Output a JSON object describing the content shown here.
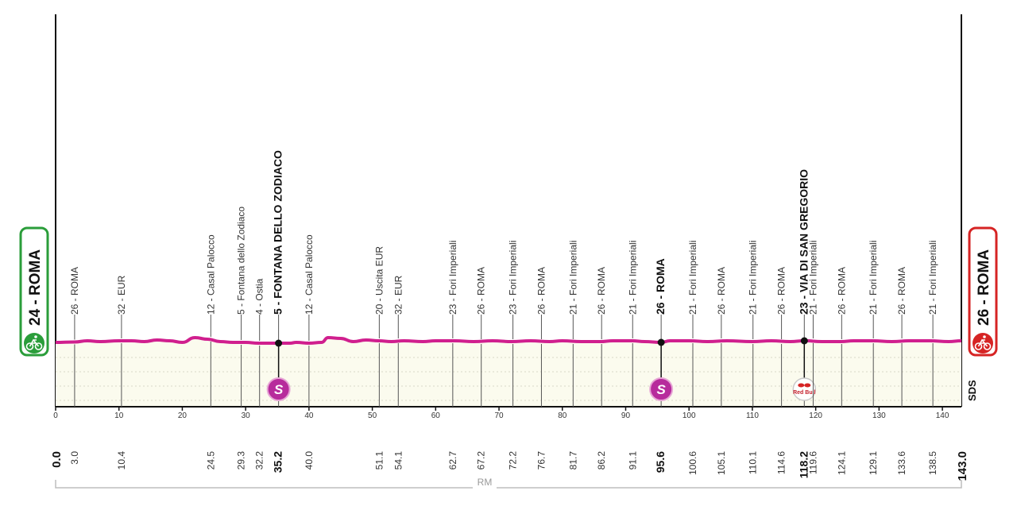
{
  "start": {
    "label": "24 - ROMA",
    "km": "0.0",
    "icon": "start-cyclist-icon"
  },
  "finish": {
    "label": "26 - ROMA",
    "km": "143.0",
    "icon": "finish-cyclist-icon"
  },
  "range_label": "RM",
  "brand_mark": "SDS",
  "sprint_badge": "S",
  "sponsor_badge": "Red Bull",
  "colors": {
    "profile_line": "#d01f8e",
    "profile_fill": "#fbfbee",
    "start_green": "#2a9d3a",
    "finish_red": "#d62424",
    "sprint_purple": "#b72b9c"
  },
  "chart_data": {
    "type": "line",
    "xlim": [
      0,
      143
    ],
    "x_ticks": [
      0,
      10,
      20,
      30,
      40,
      50,
      60,
      70,
      80,
      90,
      100,
      110,
      120,
      130,
      140
    ],
    "profile": [
      [
        0,
        24
      ],
      [
        3,
        24.5
      ],
      [
        5,
        26
      ],
      [
        7,
        25
      ],
      [
        10,
        26
      ],
      [
        12,
        26
      ],
      [
        14,
        25
      ],
      [
        16,
        27
      ],
      [
        18,
        26
      ],
      [
        20,
        24
      ],
      [
        22,
        30
      ],
      [
        24,
        28
      ],
      [
        26,
        25
      ],
      [
        28,
        24
      ],
      [
        30,
        24
      ],
      [
        32,
        23
      ],
      [
        34,
        23
      ],
      [
        35.2,
        23
      ],
      [
        37,
        23
      ],
      [
        38,
        24
      ],
      [
        40,
        23
      ],
      [
        42,
        24
      ],
      [
        43,
        30
      ],
      [
        45,
        29
      ],
      [
        47,
        25
      ],
      [
        49,
        27
      ],
      [
        51,
        26
      ],
      [
        53,
        25
      ],
      [
        55,
        26
      ],
      [
        58,
        25
      ],
      [
        60,
        26
      ],
      [
        63,
        26
      ],
      [
        66,
        25
      ],
      [
        69,
        26
      ],
      [
        72,
        25
      ],
      [
        75,
        26
      ],
      [
        78,
        25
      ],
      [
        80,
        26
      ],
      [
        83,
        25
      ],
      [
        86,
        25
      ],
      [
        88,
        26
      ],
      [
        91,
        26
      ],
      [
        93,
        25
      ],
      [
        95.6,
        24
      ],
      [
        97,
        26
      ],
      [
        100,
        26
      ],
      [
        103,
        25
      ],
      [
        106,
        26
      ],
      [
        110,
        25
      ],
      [
        113,
        26
      ],
      [
        116,
        25
      ],
      [
        118.2,
        26
      ],
      [
        121,
        25
      ],
      [
        124,
        25
      ],
      [
        126,
        26
      ],
      [
        129,
        26
      ],
      [
        132,
        25
      ],
      [
        135,
        26
      ],
      [
        138,
        26
      ],
      [
        141,
        25
      ],
      [
        143,
        26
      ]
    ],
    "waypoints": [
      {
        "km": 3.0,
        "label": "3.0",
        "name": "26 - ROMA",
        "bold": false
      },
      {
        "km": 10.4,
        "label": "10.4",
        "name": "32 - EUR",
        "bold": false
      },
      {
        "km": 24.5,
        "label": "24.5",
        "name": "12 - Casal Palocco",
        "bold": false
      },
      {
        "km": 29.3,
        "label": "29.3",
        "name": "5 - Fontana dello Zodiaco",
        "bold": false
      },
      {
        "km": 32.2,
        "label": "32.2",
        "name": "4 - Ostia",
        "bold": false
      },
      {
        "km": 35.2,
        "label": "35.2",
        "name": "5 - FONTANA DELLO ZODIACO",
        "bold": true,
        "sprint": true
      },
      {
        "km": 40.0,
        "label": "40.0",
        "name": "12 - Casal Palocco",
        "bold": false
      },
      {
        "km": 51.1,
        "label": "51.1",
        "name": "20 - Uscita EUR",
        "bold": false
      },
      {
        "km": 54.1,
        "label": "54.1",
        "name": "32 - EUR",
        "bold": false
      },
      {
        "km": 62.7,
        "label": "62.7",
        "name": "23 - Fori Imperiali",
        "bold": false
      },
      {
        "km": 67.2,
        "label": "67.2",
        "name": "26 - ROMA",
        "bold": false
      },
      {
        "km": 72.2,
        "label": "72.2",
        "name": "23 - Fori Imperiali",
        "bold": false
      },
      {
        "km": 76.7,
        "label": "76.7",
        "name": "26 - ROMA",
        "bold": false
      },
      {
        "km": 81.7,
        "label": "81.7",
        "name": "21 - Fori Imperiali",
        "bold": false
      },
      {
        "km": 86.2,
        "label": "86.2",
        "name": "26 - ROMA",
        "bold": false
      },
      {
        "km": 91.1,
        "label": "91.1",
        "name": "21 - Fori Imperiali",
        "bold": false
      },
      {
        "km": 95.6,
        "label": "95.6",
        "name": "26 - ROMA",
        "bold": true,
        "sprint": true
      },
      {
        "km": 100.6,
        "label": "100.6",
        "name": "21 - Fori Imperiali",
        "bold": false
      },
      {
        "km": 105.1,
        "label": "105.1",
        "name": "26 - ROMA",
        "bold": false
      },
      {
        "km": 110.1,
        "label": "110.1",
        "name": "21 - Fori Imperiali",
        "bold": false
      },
      {
        "km": 114.6,
        "label": "114.6",
        "name": "26 - ROMA",
        "bold": false
      },
      {
        "km": 118.2,
        "label": "118.2",
        "name": "23 - VIA DI SAN GREGORIO",
        "bold": true,
        "redbull": true
      },
      {
        "km": 119.6,
        "label": "119.6",
        "name": "21 - Fori Imperiali",
        "bold": false
      },
      {
        "km": 124.1,
        "label": "124.1",
        "name": "26 - ROMA",
        "bold": false
      },
      {
        "km": 129.1,
        "label": "129.1",
        "name": "21 - Fori Imperiali",
        "bold": false
      },
      {
        "km": 133.6,
        "label": "133.6",
        "name": "26 - ROMA",
        "bold": false
      },
      {
        "km": 138.5,
        "label": "138.5",
        "name": "21 - Fori Imperiali",
        "bold": false
      }
    ]
  }
}
